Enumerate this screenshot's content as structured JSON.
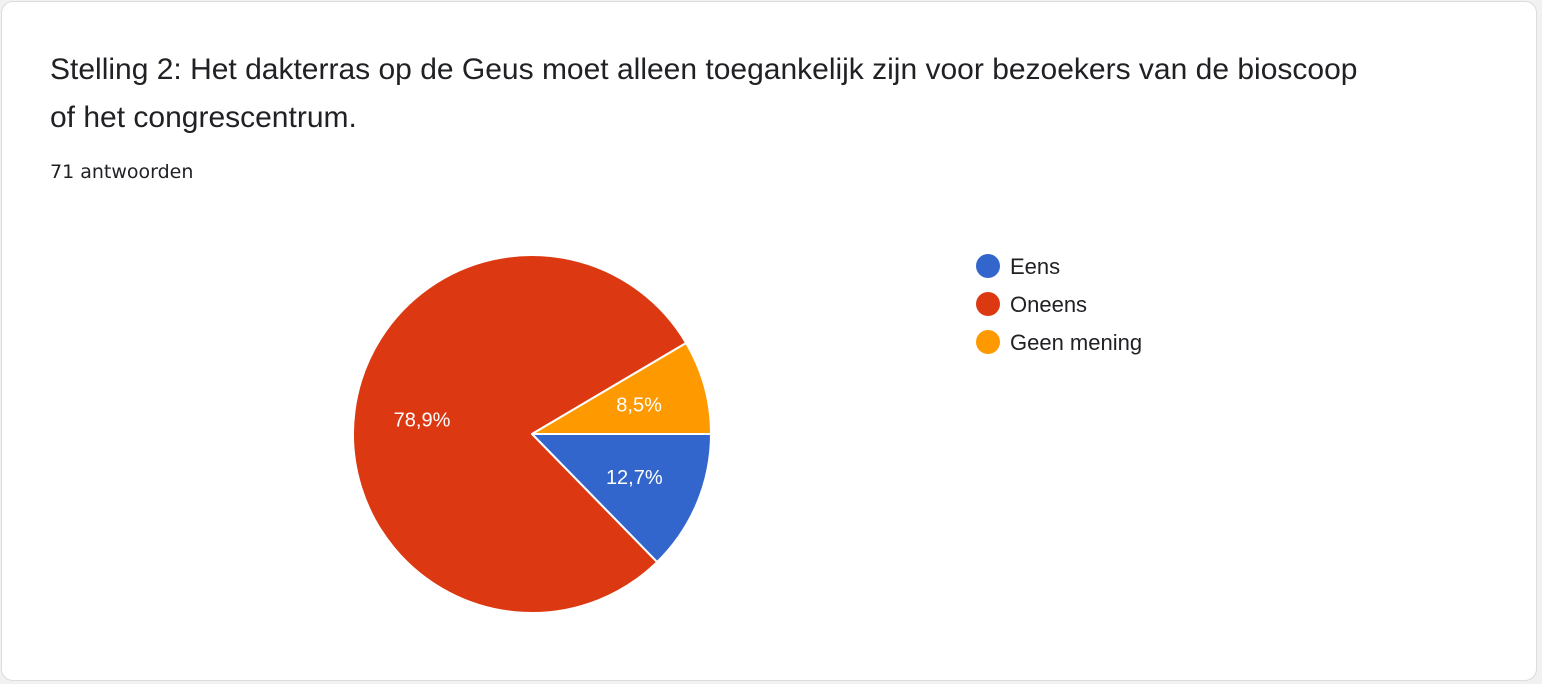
{
  "card": {
    "title": "Stelling 2: Het dakterras op de Geus moet alleen toegankelijk zijn voor bezoekers van de bioscoop of het congrescentrum.",
    "responses": "71 antwoorden"
  },
  "chart_data": {
    "type": "pie",
    "title": "Stelling 2: Het dakterras op de Geus moet alleen toegankelijk zijn voor bezoekers van de bioscoop of het congrescentrum.",
    "total_responses": 71,
    "start_angle_deg": 90,
    "direction": "clockwise",
    "legend_position": "right",
    "slices": [
      {
        "label": "Eens",
        "value": 12.7,
        "display": "12,7%",
        "color": "#3366cc"
      },
      {
        "label": "Oneens",
        "value": 78.9,
        "display": "78,9%",
        "color": "#dc3912"
      },
      {
        "label": "Geen mening",
        "value": 8.5,
        "display": "8,5%",
        "color": "#ff9900"
      }
    ]
  }
}
